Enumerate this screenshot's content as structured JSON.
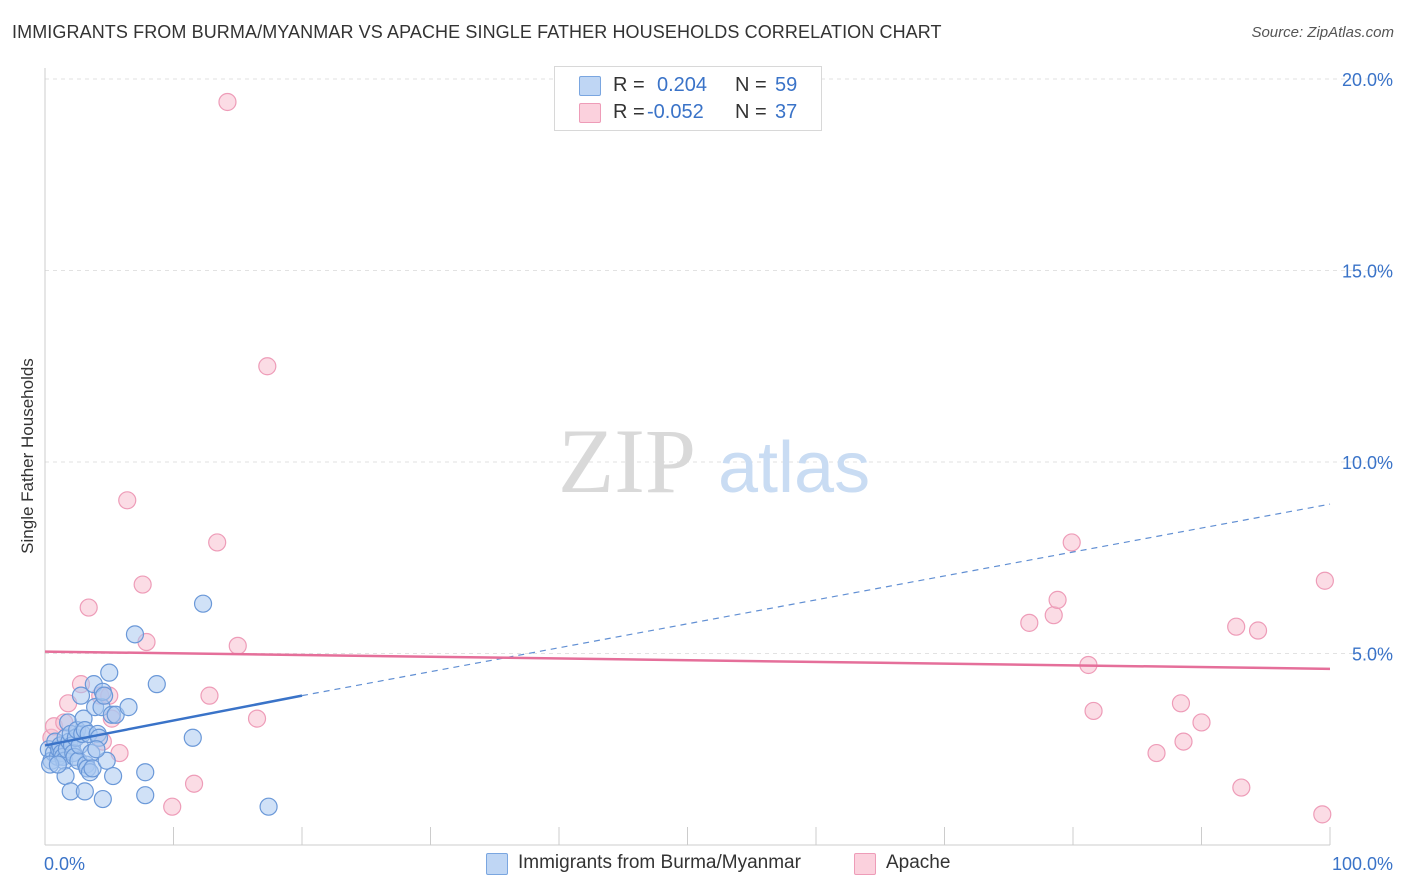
{
  "title": "IMMIGRANTS FROM BURMA/MYANMAR VS APACHE SINGLE FATHER HOUSEHOLDS CORRELATION CHART",
  "source": "Source: ZipAtlas.com",
  "watermark": {
    "zip": "ZIP",
    "atlas": "atlas"
  },
  "legend_top": {
    "r_label": "R =",
    "n_label": "N =",
    "rows": [
      {
        "r": "0.204",
        "n": "59",
        "color": "#a9c8f0"
      },
      {
        "r": "-0.052",
        "n": "37",
        "color": "#f7bfd0"
      }
    ]
  },
  "legend_bottom": [
    {
      "label": "Immigrants from Burma/Myanmar",
      "color": "#a9c8f0"
    },
    {
      "label": "Apache",
      "color": "#f7bfd0"
    }
  ],
  "chart_data": {
    "type": "scatter",
    "title": "IMMIGRANTS FROM BURMA/MYANMAR VS APACHE SINGLE FATHER HOUSEHOLDS CORRELATION CHART",
    "xlabel": "",
    "ylabel": "Single Father Households",
    "xlim": [
      0,
      100
    ],
    "ylim": [
      0,
      20
    ],
    "x_tick_labels": [
      "0.0%",
      "100.0%"
    ],
    "y_ticks": [
      5,
      10,
      15,
      20
    ],
    "y_tick_labels": [
      "5.0%",
      "10.0%",
      "15.0%",
      "20.0%"
    ],
    "grid": true,
    "colors": {
      "blue": "#3a73c8",
      "blue_fill": "#a9c8f0",
      "pink": "#e56f9a",
      "pink_fill": "#f7bfd0",
      "grid": "#e2e2e2",
      "tick_text": "#3a73c8"
    },
    "series": [
      {
        "name": "Immigrants from Burma/Myanmar",
        "color": "#3a73c8",
        "points": [
          [
            0.3,
            2.5
          ],
          [
            0.5,
            2.2
          ],
          [
            0.7,
            2.4
          ],
          [
            0.8,
            2.7
          ],
          [
            1.0,
            2.3
          ],
          [
            1.1,
            2.5
          ],
          [
            1.2,
            2.6
          ],
          [
            1.3,
            2.4
          ],
          [
            1.4,
            2.3
          ],
          [
            1.5,
            2.2
          ],
          [
            1.6,
            2.8
          ],
          [
            1.7,
            2.5
          ],
          [
            1.8,
            3.2
          ],
          [
            1.9,
            2.7
          ],
          [
            2.0,
            2.9
          ],
          [
            2.1,
            2.6
          ],
          [
            2.2,
            2.4
          ],
          [
            2.3,
            2.3
          ],
          [
            2.4,
            2.8
          ],
          [
            2.5,
            3.0
          ],
          [
            2.6,
            2.2
          ],
          [
            2.7,
            2.6
          ],
          [
            2.8,
            3.9
          ],
          [
            2.9,
            2.9
          ],
          [
            3.0,
            3.3
          ],
          [
            3.1,
            3.0
          ],
          [
            3.2,
            2.1
          ],
          [
            3.3,
            2.0
          ],
          [
            3.4,
            2.9
          ],
          [
            3.5,
            1.9
          ],
          [
            3.6,
            2.4
          ],
          [
            3.7,
            2.0
          ],
          [
            3.8,
            4.2
          ],
          [
            3.9,
            3.6
          ],
          [
            4.1,
            2.9
          ],
          [
            4.2,
            2.8
          ],
          [
            4.4,
            3.6
          ],
          [
            4.5,
            4.0
          ],
          [
            4.6,
            3.9
          ],
          [
            4.8,
            2.2
          ],
          [
            5.0,
            4.5
          ],
          [
            5.2,
            3.4
          ],
          [
            5.5,
            3.4
          ],
          [
            4.0,
            2.5
          ],
          [
            1.6,
            1.8
          ],
          [
            2.0,
            1.4
          ],
          [
            3.1,
            1.4
          ],
          [
            4.5,
            1.2
          ],
          [
            5.3,
            1.8
          ],
          [
            6.5,
            3.6
          ],
          [
            7.0,
            5.5
          ],
          [
            7.8,
            1.9
          ],
          [
            7.8,
            1.3
          ],
          [
            8.7,
            4.2
          ],
          [
            11.5,
            2.8
          ],
          [
            12.3,
            6.3
          ],
          [
            17.4,
            1.0
          ],
          [
            0.4,
            2.1
          ],
          [
            1.0,
            2.1
          ]
        ]
      },
      {
        "name": "Apache",
        "color": "#e56f9a",
        "points": [
          [
            0.5,
            2.8
          ],
          [
            0.7,
            3.1
          ],
          [
            1.5,
            3.2
          ],
          [
            1.8,
            3.7
          ],
          [
            2.8,
            4.2
          ],
          [
            3.4,
            6.2
          ],
          [
            4.3,
            3.9
          ],
          [
            4.5,
            2.7
          ],
          [
            5.0,
            3.9
          ],
          [
            5.2,
            3.3
          ],
          [
            5.8,
            2.4
          ],
          [
            6.4,
            9.0
          ],
          [
            7.6,
            6.8
          ],
          [
            7.9,
            5.3
          ],
          [
            9.9,
            1.0
          ],
          [
            11.6,
            1.6
          ],
          [
            12.8,
            3.9
          ],
          [
            13.4,
            7.9
          ],
          [
            14.2,
            19.4
          ],
          [
            15.0,
            5.2
          ],
          [
            16.5,
            3.3
          ],
          [
            17.3,
            12.5
          ],
          [
            76.6,
            5.8
          ],
          [
            78.5,
            6.0
          ],
          [
            78.8,
            6.4
          ],
          [
            79.9,
            7.9
          ],
          [
            81.2,
            4.7
          ],
          [
            81.6,
            3.5
          ],
          [
            86.5,
            2.4
          ],
          [
            88.4,
            3.7
          ],
          [
            88.6,
            2.7
          ],
          [
            92.7,
            5.7
          ],
          [
            93.1,
            1.5
          ],
          [
            94.4,
            5.6
          ],
          [
            99.4,
            0.8
          ],
          [
            99.6,
            6.9
          ],
          [
            90.0,
            3.2
          ]
        ]
      }
    ],
    "trend_lines": [
      {
        "series": "Immigrants from Burma/Myanmar",
        "x0": 0,
        "y0": 2.6,
        "x1": 20,
        "y1": 3.9,
        "style": "solid",
        "extended_to_x": 100,
        "extended_to_y": 8.9,
        "extended_style": "dashed"
      },
      {
        "series": "Apache",
        "x0": 0,
        "y0": 5.05,
        "x1": 100,
        "y1": 4.6,
        "style": "solid"
      }
    ]
  }
}
